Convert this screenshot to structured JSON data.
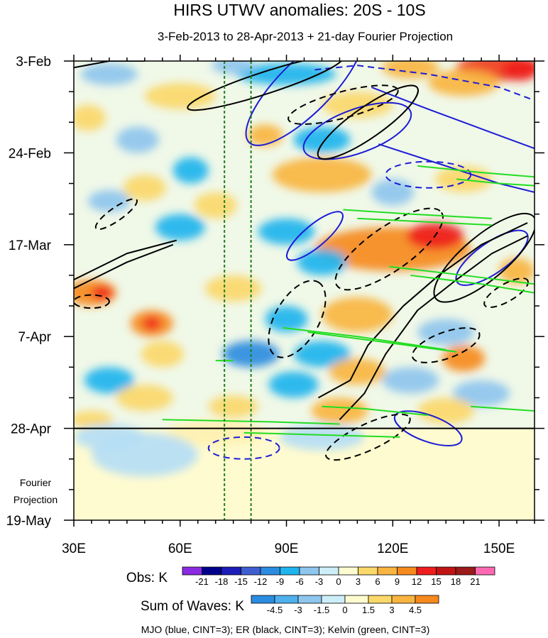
{
  "chart_data": {
    "type": "heatmap",
    "title": "HIRS UTWV anomalies: 20S - 10S",
    "subtitle": "3-Feb-2013 to 28-Apr-2013 + 21-day Fourier Projection",
    "x_axis": {
      "range": [
        30,
        160
      ],
      "ticks": [
        {
          "value": 30,
          "label": "30E"
        },
        {
          "value": 60,
          "label": "60E"
        },
        {
          "value": 90,
          "label": "90E"
        },
        {
          "value": 120,
          "label": "120E"
        },
        {
          "value": 150,
          "label": "150E"
        }
      ]
    },
    "y_axis": {
      "start_date": "3-Feb-2013",
      "range_days": [
        0,
        105
      ],
      "ticks": [
        {
          "day": 0,
          "label": "3-Feb"
        },
        {
          "day": 21,
          "label": "24-Feb"
        },
        {
          "day": 42,
          "label": "17-Mar"
        },
        {
          "day": 63,
          "label": "7-Apr"
        },
        {
          "day": 84,
          "label": "28-Apr"
        },
        {
          "day": 105,
          "label": "19-May"
        }
      ],
      "projection_start_day": 84,
      "projection_label_1": "Fourier",
      "projection_label_2": "Projection"
    },
    "reference_longitudes": [
      72.5,
      80
    ],
    "obs_colorbar": {
      "label": "Obs: K",
      "levels": [
        "-21",
        "-18",
        "-15",
        "-12",
        "-9",
        "-6",
        "-3",
        "0",
        "3",
        "6",
        "9",
        "12",
        "15",
        "18",
        "21"
      ],
      "colors": [
        "#8a2be2",
        "#00008b",
        "#1c1cb8",
        "#3f5fd1",
        "#2b8ce0",
        "#1fb4ee",
        "#8ec6ee",
        "#cdeef8",
        "#fffbd0",
        "#fbd86a",
        "#f8b540",
        "#f68a1e",
        "#ef1d1d",
        "#c01414",
        "#9b1a1a",
        "#ff69b4"
      ]
    },
    "waves_colorbar": {
      "label": "Sum of Waves: K",
      "levels": [
        "-4.5",
        "-3",
        "-1.5",
        "0",
        "1.5",
        "3",
        "4.5"
      ],
      "colors": [
        "#2b8ce0",
        "#4fb0ee",
        "#8ec6ee",
        "#cdeef8",
        "#fffbd0",
        "#fbd86a",
        "#f8b540",
        "#f68a1e"
      ]
    },
    "footer": "MJO (blue, CINT=3); ER (black, CINT=3); Kelvin (green, CINT=3)",
    "contour_colors": {
      "mjo": "#1c1cd6",
      "er": "#000000",
      "kelvin": "#22dd22",
      "ref_lines": "#1e7f1e"
    },
    "anomaly_blobs": [
      {
        "lon": 150,
        "day": 1.5,
        "rx": 12,
        "ry": 3,
        "value": 13
      },
      {
        "lon": 156,
        "day": 2,
        "rx": 5,
        "ry": 2.5,
        "value": 17
      },
      {
        "lon": 125,
        "day": 1.5,
        "rx": 8,
        "ry": 2.5,
        "value": 8
      },
      {
        "lon": 140,
        "day": 5,
        "rx": 10,
        "ry": 3,
        "value": 6
      },
      {
        "lon": 90,
        "day": 3,
        "rx": 14,
        "ry": 2.5,
        "value": -8
      },
      {
        "lon": 75,
        "day": 1,
        "rx": 6,
        "ry": 2,
        "value": -5
      },
      {
        "lon": 40,
        "day": 3,
        "rx": 8,
        "ry": 2.5,
        "value": -5
      },
      {
        "lon": 60,
        "day": 8,
        "rx": 10,
        "ry": 3,
        "value": 5
      },
      {
        "lon": 110,
        "day": 10,
        "rx": 10,
        "ry": 3,
        "value": 5
      },
      {
        "lon": 100,
        "day": 18,
        "rx": 8,
        "ry": 3,
        "value": -8
      },
      {
        "lon": 84,
        "day": 17,
        "rx": 5,
        "ry": 2.5,
        "value": 6
      },
      {
        "lon": 34,
        "day": 13,
        "rx": 5,
        "ry": 3,
        "value": 5
      },
      {
        "lon": 48,
        "day": 18,
        "rx": 6,
        "ry": 3,
        "value": -4
      },
      {
        "lon": 100,
        "day": 26,
        "rx": 14,
        "ry": 4,
        "value": 6
      },
      {
        "lon": 140,
        "day": 27,
        "rx": 8,
        "ry": 3,
        "value": 4
      },
      {
        "lon": 120,
        "day": 30,
        "rx": 6,
        "ry": 3,
        "value": -5
      },
      {
        "lon": 63,
        "day": 25,
        "rx": 5,
        "ry": 3,
        "value": -6
      },
      {
        "lon": 50,
        "day": 29,
        "rx": 6,
        "ry": 3,
        "value": 5
      },
      {
        "lon": 40,
        "day": 32,
        "rx": 6,
        "ry": 2.5,
        "value": -5
      },
      {
        "lon": 70,
        "day": 33,
        "rx": 6,
        "ry": 3,
        "value": 5
      },
      {
        "lon": 60,
        "day": 38,
        "rx": 7,
        "ry": 3,
        "value": -8
      },
      {
        "lon": 90,
        "day": 39,
        "rx": 8,
        "ry": 3,
        "value": -6
      },
      {
        "lon": 120,
        "day": 43,
        "rx": 22,
        "ry": 5,
        "value": 9
      },
      {
        "lon": 132,
        "day": 40,
        "rx": 8,
        "ry": 3,
        "value": 15
      },
      {
        "lon": 100,
        "day": 46,
        "rx": 7,
        "ry": 3,
        "value": -7
      },
      {
        "lon": 155,
        "day": 48,
        "rx": 5,
        "ry": 3,
        "value": 7
      },
      {
        "lon": 35,
        "day": 53,
        "rx": 7,
        "ry": 3,
        "value": 9
      },
      {
        "lon": 38,
        "day": 53,
        "rx": 3,
        "ry": 1.5,
        "value": 16
      },
      {
        "lon": 75,
        "day": 52,
        "rx": 8,
        "ry": 3,
        "value": 5
      },
      {
        "lon": 110,
        "day": 58,
        "rx": 10,
        "ry": 4,
        "value": 8
      },
      {
        "lon": 52,
        "day": 60,
        "rx": 6,
        "ry": 3,
        "value": 9
      },
      {
        "lon": 52,
        "day": 60,
        "rx": 2.5,
        "ry": 1.5,
        "value": 17
      },
      {
        "lon": 90,
        "day": 59,
        "rx": 6,
        "ry": 3,
        "value": -8
      },
      {
        "lon": 135,
        "day": 62,
        "rx": 8,
        "ry": 3,
        "value": -5
      },
      {
        "lon": 80,
        "day": 67,
        "rx": 8,
        "ry": 3,
        "value": -10
      },
      {
        "lon": 55,
        "day": 67,
        "rx": 6,
        "ry": 3,
        "value": 5
      },
      {
        "lon": 100,
        "day": 67,
        "rx": 8,
        "ry": 3,
        "value": -6
      },
      {
        "lon": 140,
        "day": 68,
        "rx": 6,
        "ry": 3,
        "value": 9
      },
      {
        "lon": 110,
        "day": 71,
        "rx": 8,
        "ry": 3,
        "value": 6
      },
      {
        "lon": 40,
        "day": 73,
        "rx": 7,
        "ry": 3,
        "value": -6
      },
      {
        "lon": 92,
        "day": 74,
        "rx": 7,
        "ry": 3,
        "value": -8
      },
      {
        "lon": 125,
        "day": 73,
        "rx": 8,
        "ry": 3,
        "value": -4
      },
      {
        "lon": 50,
        "day": 77,
        "rx": 8,
        "ry": 3,
        "value": 5
      },
      {
        "lon": 145,
        "day": 76,
        "rx": 8,
        "ry": 3,
        "value": -5
      },
      {
        "lon": 75,
        "day": 79,
        "rx": 7,
        "ry": 2.5,
        "value": 5
      },
      {
        "lon": 105,
        "day": 80,
        "rx": 8,
        "ry": 3,
        "value": 6
      },
      {
        "lon": 135,
        "day": 80,
        "rx": 8,
        "ry": 3,
        "value": 5
      },
      {
        "lon": 35,
        "day": 82,
        "rx": 6,
        "ry": 2,
        "value": 4
      },
      {
        "lon": 70,
        "day": 85,
        "rx": 14,
        "ry": 3,
        "value": 1.8
      },
      {
        "lon": 40,
        "day": 86,
        "rx": 10,
        "ry": 3,
        "value": -1.8
      },
      {
        "lon": 100,
        "day": 86,
        "rx": 12,
        "ry": 3,
        "value": -1.8
      },
      {
        "lon": 50,
        "day": 90,
        "rx": 15,
        "ry": 5,
        "value": -1.6
      }
    ],
    "mjo_contours": [
      {
        "type": "ellipse",
        "lon": 95,
        "day": 6,
        "rx": 22,
        "ry": 6,
        "rot": -45,
        "dashed": false
      },
      {
        "type": "ellipse",
        "lon": 110,
        "day": 16,
        "rx": 16,
        "ry": 5,
        "rot": -20,
        "dashed": false
      },
      {
        "type": "ellipse",
        "lon": 78,
        "day": 88.5,
        "rx": 10,
        "ry": 2.5,
        "rot": 0,
        "dashed": true
      },
      {
        "type": "ellipse",
        "lon": 130,
        "day": 26,
        "rx": 12,
        "ry": 3,
        "rot": 0,
        "dashed": true
      },
      {
        "type": "ellipse",
        "lon": 98,
        "day": 40,
        "rx": 10,
        "ry": 2.5,
        "rot": -40,
        "dashed": false
      },
      {
        "type": "ellipse",
        "lon": 148,
        "day": 45,
        "rx": 12,
        "ry": 3.5,
        "rot": -35,
        "dashed": false
      },
      {
        "type": "ellipse",
        "lon": 130,
        "day": 84,
        "rx": 10,
        "ry": 3,
        "rot": 20,
        "dashed": false
      },
      {
        "type": "path",
        "points": [
          [
            98,
            2
          ],
          [
            110,
            1
          ],
          [
            130,
            3
          ],
          [
            150,
            6
          ],
          [
            160,
            9
          ]
        ],
        "dashed": true
      },
      {
        "type": "path",
        "points": [
          [
            114,
            6
          ],
          [
            130,
            11
          ],
          [
            150,
            17
          ],
          [
            160,
            20
          ]
        ],
        "dashed": false
      },
      {
        "type": "path",
        "points": [
          [
            116,
            19
          ],
          [
            135,
            24
          ],
          [
            150,
            28
          ],
          [
            160,
            30
          ]
        ],
        "dashed": false
      }
    ],
    "er_contours": [
      {
        "type": "ellipse",
        "lon": 84,
        "day": 5,
        "rx": 23,
        "ry": 2.5,
        "rot": -18,
        "dashed": false
      },
      {
        "type": "ellipse",
        "lon": 106,
        "day": 10,
        "rx": 16,
        "ry": 3,
        "rot": -15,
        "dashed": true
      },
      {
        "type": "ellipse",
        "lon": 113,
        "day": 14,
        "rx": 17,
        "ry": 3.5,
        "rot": -35,
        "dashed": false
      },
      {
        "type": "ellipse",
        "lon": 42,
        "day": 35,
        "rx": 7,
        "ry": 1.5,
        "rot": -35,
        "dashed": true
      },
      {
        "type": "ellipse",
        "lon": 35,
        "day": 55,
        "rx": 5,
        "ry": 1.5,
        "rot": 0,
        "dashed": true
      },
      {
        "type": "ellipse",
        "lon": 119,
        "day": 43,
        "rx": 18,
        "ry": 5,
        "rot": -35,
        "dashed": true
      },
      {
        "type": "ellipse",
        "lon": 93,
        "day": 59,
        "rx": 12,
        "ry": 5,
        "rot": -60,
        "dashed": true
      },
      {
        "type": "ellipse",
        "lon": 135,
        "day": 65,
        "rx": 10,
        "ry": 3,
        "rot": -20,
        "dashed": true
      },
      {
        "type": "ellipse",
        "lon": 152,
        "day": 53,
        "rx": 7,
        "ry": 2,
        "rot": -30,
        "dashed": true
      },
      {
        "type": "ellipse",
        "lon": 113,
        "day": 86,
        "rx": 13,
        "ry": 3,
        "rot": -25,
        "dashed": true
      },
      {
        "type": "ellipse",
        "lon": 146,
        "day": 45,
        "rx": 18,
        "ry": 5,
        "rot": -40,
        "dashed": false
      },
      {
        "type": "path",
        "points": [
          [
            30,
            50
          ],
          [
            45,
            44
          ],
          [
            59,
            41
          ]
        ],
        "dashed": false
      },
      {
        "type": "path",
        "points": [
          [
            30,
            52
          ],
          [
            45,
            46
          ],
          [
            58,
            42
          ]
        ],
        "dashed": false
      },
      {
        "type": "path",
        "points": [
          [
            30,
            1.5
          ],
          [
            40,
            0
          ],
          [
            50,
            0
          ]
        ],
        "dashed": false
      },
      {
        "type": "path",
        "points": [
          [
            105,
            82
          ],
          [
            112,
            76
          ],
          [
            118,
            67
          ],
          [
            127,
            57
          ],
          [
            138,
            50
          ],
          [
            148,
            44
          ],
          [
            158,
            40
          ]
        ],
        "dashed": false
      },
      {
        "type": "path",
        "points": [
          [
            99,
            77
          ],
          [
            108,
            73
          ],
          [
            113,
            65
          ],
          [
            123,
            56
          ],
          [
            133,
            49
          ],
          [
            145,
            42
          ],
          [
            158,
            37
          ]
        ],
        "dashed": false
      }
    ],
    "kelvin_contours": [
      {
        "type": "path",
        "points": [
          [
            127,
            24
          ],
          [
            145,
            25.5
          ],
          [
            160,
            26.5
          ]
        ],
        "dashed": false
      },
      {
        "type": "path",
        "points": [
          [
            138,
            27
          ],
          [
            150,
            28
          ],
          [
            160,
            28.5
          ]
        ],
        "dashed": false
      },
      {
        "type": "path",
        "points": [
          [
            106,
            34
          ],
          [
            125,
            35
          ],
          [
            148,
            36
          ]
        ],
        "dashed": false
      },
      {
        "type": "path",
        "points": [
          [
            110,
            36
          ],
          [
            135,
            37
          ],
          [
            148,
            37.5
          ]
        ],
        "dashed": false
      },
      {
        "type": "path",
        "points": [
          [
            119,
            47
          ],
          [
            140,
            49
          ],
          [
            160,
            51
          ]
        ],
        "dashed": false
      },
      {
        "type": "path",
        "points": [
          [
            125,
            49
          ],
          [
            145,
            51
          ],
          [
            160,
            53
          ]
        ],
        "dashed": false
      },
      {
        "type": "path",
        "points": [
          [
            89,
            61
          ],
          [
            110,
            63
          ],
          [
            135,
            66
          ]
        ],
        "dashed": false
      },
      {
        "type": "path",
        "points": [
          [
            96,
            62
          ],
          [
            115,
            64
          ],
          [
            138,
            66.5
          ]
        ],
        "dashed": false
      },
      {
        "type": "path",
        "points": [
          [
            70,
            68.5
          ],
          [
            75,
            68.5
          ]
        ],
        "dashed": false
      },
      {
        "type": "path",
        "points": [
          [
            100,
            79
          ],
          [
            112,
            79.5
          ],
          [
            130,
            81
          ]
        ],
        "dashed": false
      },
      {
        "type": "path",
        "points": [
          [
            142,
            79
          ],
          [
            160,
            80
          ]
        ],
        "dashed": false
      },
      {
        "type": "path",
        "points": [
          [
            55,
            82
          ],
          [
            85,
            82.5
          ],
          [
            105,
            83
          ]
        ],
        "dashed": false
      },
      {
        "type": "path",
        "points": [
          [
            78,
            85
          ],
          [
            100,
            85.5
          ],
          [
            122,
            86
          ]
        ],
        "dashed": false
      }
    ]
  }
}
